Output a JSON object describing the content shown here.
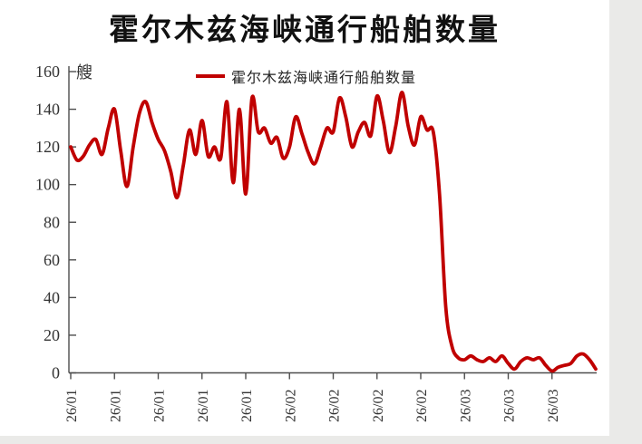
{
  "page": {
    "background": "#ffffff",
    "margin_color": "#eaeae8"
  },
  "title": "霍尔木兹海峡通行船舶数量",
  "chart_data": {
    "type": "line",
    "title": "霍尔木兹海峡通行船舶数量",
    "unit_label": "艘",
    "legend_label": "霍尔木兹海峡通行船舶数量",
    "legend_position": "top-center",
    "line_color": "#c00000",
    "axis_color": "#4d4d4d",
    "label_color": "#333333",
    "grid": false,
    "ylim": [
      0,
      160
    ],
    "yticks": [
      0,
      20,
      40,
      60,
      80,
      100,
      120,
      140,
      160
    ],
    "x_tick_labels": [
      "26/01",
      "26/01",
      "26/01",
      "26/01",
      "26/01",
      "26/02",
      "26/02",
      "26/02",
      "26/02",
      "26/03",
      "26/03",
      "26/03"
    ],
    "points_per_tick": 7,
    "values": [
      120,
      113,
      115,
      121,
      124,
      116,
      130,
      140,
      118,
      99,
      120,
      138,
      144,
      133,
      124,
      118,
      107,
      93,
      110,
      129,
      116,
      134,
      115,
      120,
      114,
      144,
      101,
      140,
      95,
      146,
      128,
      130,
      122,
      125,
      114,
      120,
      136,
      127,
      117,
      111,
      120,
      130,
      128,
      146,
      136,
      120,
      128,
      133,
      126,
      147,
      134,
      117,
      131,
      149,
      131,
      121,
      136,
      129,
      128,
      95,
      35,
      14,
      8,
      7,
      9,
      7,
      6,
      8,
      6,
      9,
      5,
      2,
      6,
      8,
      7,
      8,
      4,
      1,
      3,
      4,
      5,
      9,
      10,
      7,
      2
    ]
  }
}
